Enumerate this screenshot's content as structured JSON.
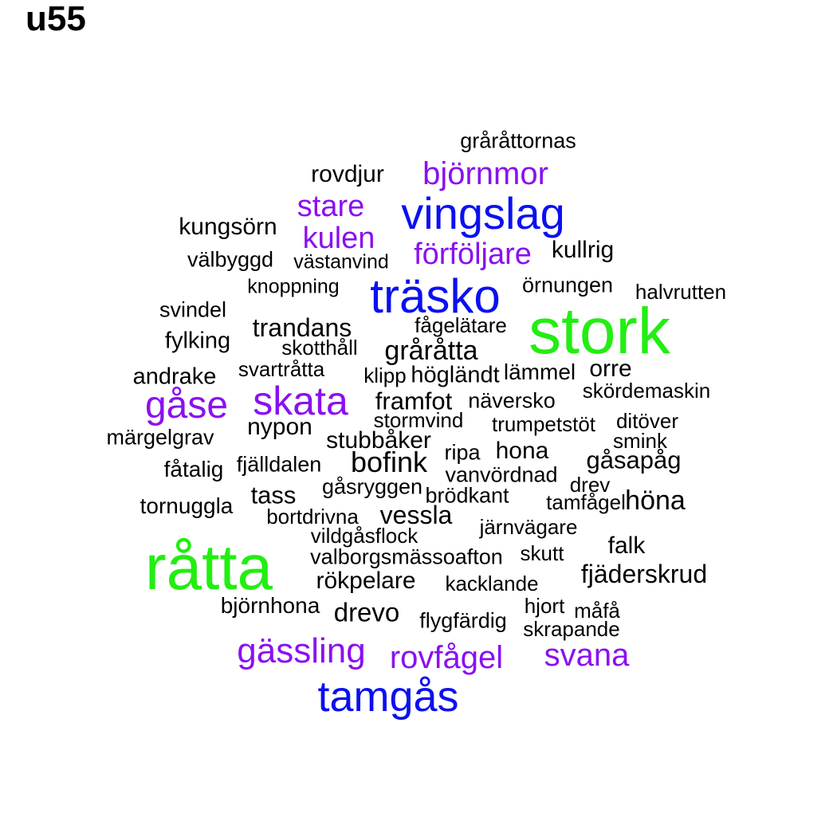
{
  "title": "u55",
  "colors": {
    "green": "#22ee11",
    "blue": "#0a10f0",
    "purple": "#8a10f0",
    "black": "#000000"
  },
  "words": [
    {
      "text": "stork",
      "color": "green"
    },
    {
      "text": "råtta",
      "color": "green"
    },
    {
      "text": "träsko",
      "color": "blue"
    },
    {
      "text": "vingslag",
      "color": "blue"
    },
    {
      "text": "tamgås",
      "color": "blue"
    },
    {
      "text": "skata",
      "color": "purple"
    },
    {
      "text": "gåse",
      "color": "purple"
    },
    {
      "text": "björnmor",
      "color": "purple"
    },
    {
      "text": "stare",
      "color": "purple"
    },
    {
      "text": "kulen",
      "color": "purple"
    },
    {
      "text": "förföljare",
      "color": "purple"
    },
    {
      "text": "gässling",
      "color": "purple"
    },
    {
      "text": "rovfågel",
      "color": "purple"
    },
    {
      "text": "svana",
      "color": "purple"
    },
    {
      "text": "gråråttornas",
      "color": "black"
    },
    {
      "text": "rovdjur",
      "color": "black"
    },
    {
      "text": "kungsörn",
      "color": "black"
    },
    {
      "text": "kullrig",
      "color": "black"
    },
    {
      "text": "välbyggd",
      "color": "black"
    },
    {
      "text": "västanvind",
      "color": "black"
    },
    {
      "text": "knoppning",
      "color": "black"
    },
    {
      "text": "örnungen",
      "color": "black"
    },
    {
      "text": "halvrutten",
      "color": "black"
    },
    {
      "text": "svindel",
      "color": "black"
    },
    {
      "text": "trandans",
      "color": "black"
    },
    {
      "text": "fågelätare",
      "color": "black"
    },
    {
      "text": "fylking",
      "color": "black"
    },
    {
      "text": "skotthåll",
      "color": "black"
    },
    {
      "text": "gråråtta",
      "color": "black"
    },
    {
      "text": "andrake",
      "color": "black"
    },
    {
      "text": "svartråtta",
      "color": "black"
    },
    {
      "text": "klipp",
      "color": "black"
    },
    {
      "text": "högländt",
      "color": "black"
    },
    {
      "text": "lämmel",
      "color": "black"
    },
    {
      "text": "orre",
      "color": "black"
    },
    {
      "text": "framfot",
      "color": "black"
    },
    {
      "text": "näversko",
      "color": "black"
    },
    {
      "text": "skördemaskin",
      "color": "black"
    },
    {
      "text": "stormvind",
      "color": "black"
    },
    {
      "text": "trumpetstöt",
      "color": "black"
    },
    {
      "text": "ditöver",
      "color": "black"
    },
    {
      "text": "nypon",
      "color": "black"
    },
    {
      "text": "märgelgrav",
      "color": "black"
    },
    {
      "text": "stubbåker",
      "color": "black"
    },
    {
      "text": "smink",
      "color": "black"
    },
    {
      "text": "bofink",
      "color": "black"
    },
    {
      "text": "ripa",
      "color": "black"
    },
    {
      "text": "hona",
      "color": "black"
    },
    {
      "text": "gåsapåg",
      "color": "black"
    },
    {
      "text": "fåtalig",
      "color": "black"
    },
    {
      "text": "fjälldalen",
      "color": "black"
    },
    {
      "text": "vanvördnad",
      "color": "black"
    },
    {
      "text": "drev",
      "color": "black"
    },
    {
      "text": "gåsryggen",
      "color": "black"
    },
    {
      "text": "tass",
      "color": "black"
    },
    {
      "text": "brödkant",
      "color": "black"
    },
    {
      "text": "tamfågel",
      "color": "black"
    },
    {
      "text": "höna",
      "color": "black"
    },
    {
      "text": "tornuggla",
      "color": "black"
    },
    {
      "text": "bortdrivna",
      "color": "black"
    },
    {
      "text": "vessla",
      "color": "black"
    },
    {
      "text": "järnvägare",
      "color": "black"
    },
    {
      "text": "vildgåsflock",
      "color": "black"
    },
    {
      "text": "falk",
      "color": "black"
    },
    {
      "text": "valborgsmässoafton",
      "color": "black"
    },
    {
      "text": "skutt",
      "color": "black"
    },
    {
      "text": "rökpelare",
      "color": "black"
    },
    {
      "text": "kacklande",
      "color": "black"
    },
    {
      "text": "fjäderskrud",
      "color": "black"
    },
    {
      "text": "björnhona",
      "color": "black"
    },
    {
      "text": "drevo",
      "color": "black"
    },
    {
      "text": "hjort",
      "color": "black"
    },
    {
      "text": "måfå",
      "color": "black"
    },
    {
      "text": "flygfärdig",
      "color": "black"
    },
    {
      "text": "skrapande",
      "color": "black"
    }
  ]
}
